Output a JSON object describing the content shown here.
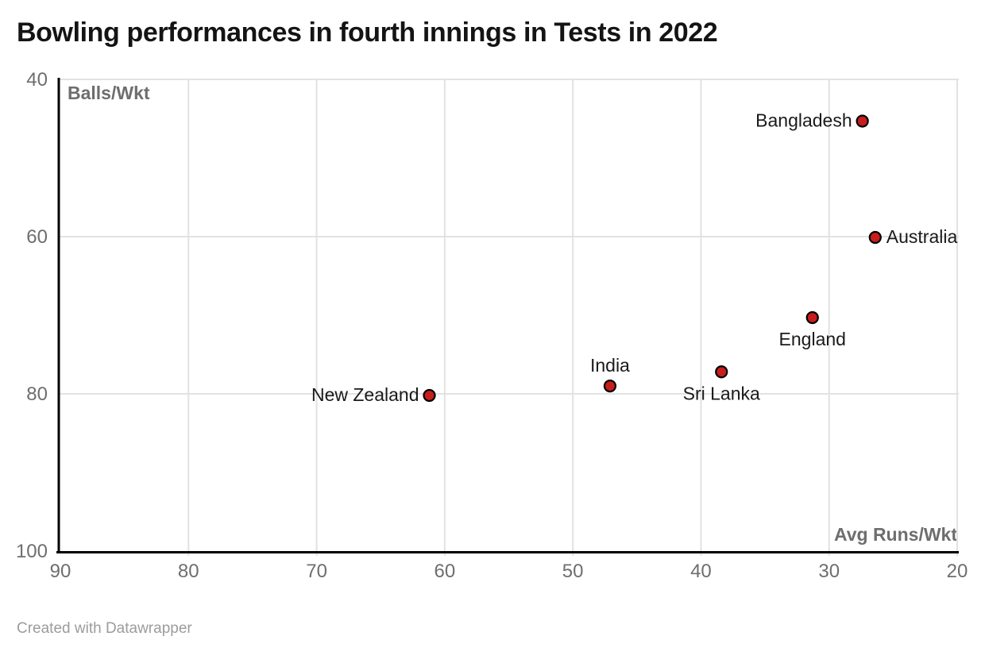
{
  "header": {
    "title": "Bowling performances in fourth innings in Tests in 2022"
  },
  "footer": {
    "credit": "Created with Datawrapper"
  },
  "chart_data": {
    "type": "scatter",
    "title": "Bowling performances in fourth innings in Tests in 2022",
    "xlabel": "Avg Runs/Wkt",
    "ylabel": "Balls/Wkt",
    "x_axis": {
      "label": "Avg Runs/Wkt",
      "range": [
        90,
        20
      ],
      "reversed": true,
      "ticks": [
        90,
        80,
        70,
        60,
        50,
        40,
        30,
        20
      ]
    },
    "y_axis": {
      "label": "Balls/Wkt",
      "range": [
        40,
        100
      ],
      "inverted": true,
      "ticks": [
        40,
        60,
        80,
        100
      ]
    },
    "grid": true,
    "points": [
      {
        "name": "Bangladesh",
        "x": 27.4,
        "y": 45.3,
        "label_position": "left"
      },
      {
        "name": "Australia",
        "x": 26.4,
        "y": 60.1,
        "label_position": "right"
      },
      {
        "name": "England",
        "x": 31.3,
        "y": 70.3,
        "label_position": "below"
      },
      {
        "name": "Sri Lanka",
        "x": 38.4,
        "y": 77.2,
        "label_position": "below"
      },
      {
        "name": "India",
        "x": 47.1,
        "y": 79.0,
        "label_position": "above"
      },
      {
        "name": "New Zealand",
        "x": 61.2,
        "y": 80.2,
        "label_position": "left"
      }
    ],
    "colors": {
      "point_fill": "#c71e1d",
      "point_stroke": "#000000",
      "grid": "#e2e2e2",
      "axis": "#000000",
      "tick_label": "#6e6e6e",
      "axis_title": "#6e6e6e",
      "point_label": "#1a1a1a"
    }
  }
}
